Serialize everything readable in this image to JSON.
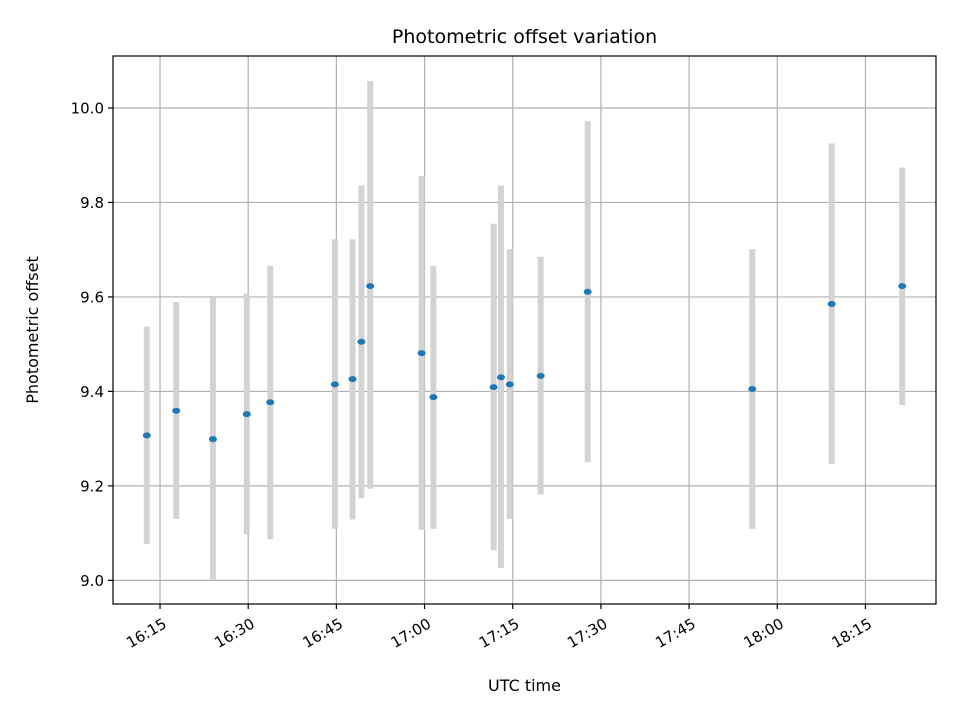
{
  "chart_data": {
    "type": "scatter",
    "title": "Photometric offset variation",
    "xlabel": "UTC time",
    "ylabel": "Photometric offset",
    "xlim": [
      "16:07",
      "18:27"
    ],
    "ylim": [
      8.95,
      10.11
    ],
    "grid": true,
    "x_ticks": [
      "16:15",
      "16:30",
      "16:45",
      "17:00",
      "17:15",
      "17:30",
      "17:45",
      "18:00",
      "18:15"
    ],
    "y_ticks": [
      "9.0",
      "9.2",
      "9.4",
      "9.6",
      "9.8",
      "10.0"
    ],
    "colors": {
      "marker": "#1f77b4",
      "errorbar": "#d3d3d3",
      "grid": "#b0b0b0"
    },
    "series": [
      {
        "points": [
          {
            "x": "16:12:45",
            "y": 9.307,
            "ylow": 9.077,
            "yhigh": 9.537
          },
          {
            "x": "16:17:45",
            "y": 9.359,
            "ylow": 9.13,
            "yhigh": 9.589
          },
          {
            "x": "16:24:00",
            "y": 9.299,
            "ylow": 9.0,
            "yhigh": 9.598
          },
          {
            "x": "16:29:45",
            "y": 9.352,
            "ylow": 9.097,
            "yhigh": 9.607
          },
          {
            "x": "16:33:45",
            "y": 9.377,
            "ylow": 9.087,
            "yhigh": 9.666
          },
          {
            "x": "16:44:45",
            "y": 9.415,
            "ylow": 9.109,
            "yhigh": 9.722
          },
          {
            "x": "16:47:45",
            "y": 9.426,
            "ylow": 9.129,
            "yhigh": 9.722
          },
          {
            "x": "16:49:15",
            "y": 9.505,
            "ylow": 9.174,
            "yhigh": 9.836
          },
          {
            "x": "16:50:45",
            "y": 9.623,
            "ylow": 9.194,
            "yhigh": 10.057
          },
          {
            "x": "16:59:30",
            "y": 9.481,
            "ylow": 9.107,
            "yhigh": 9.856
          },
          {
            "x": "17:01:30",
            "y": 9.388,
            "ylow": 9.109,
            "yhigh": 9.666
          },
          {
            "x": "17:11:45",
            "y": 9.409,
            "ylow": 9.064,
            "yhigh": 9.755
          },
          {
            "x": "17:13:00",
            "y": 9.43,
            "ylow": 9.026,
            "yhigh": 9.836
          },
          {
            "x": "17:14:30",
            "y": 9.415,
            "ylow": 9.13,
            "yhigh": 9.701
          },
          {
            "x": "17:19:45",
            "y": 9.433,
            "ylow": 9.182,
            "yhigh": 9.685
          },
          {
            "x": "17:27:45",
            "y": 9.611,
            "ylow": 9.25,
            "yhigh": 9.972
          },
          {
            "x": "17:55:45",
            "y": 9.405,
            "ylow": 9.109,
            "yhigh": 9.701
          },
          {
            "x": "18:09:15",
            "y": 9.585,
            "ylow": 9.246,
            "yhigh": 9.925
          },
          {
            "x": "18:21:15",
            "y": 9.623,
            "ylow": 9.371,
            "yhigh": 9.874
          }
        ]
      }
    ]
  }
}
